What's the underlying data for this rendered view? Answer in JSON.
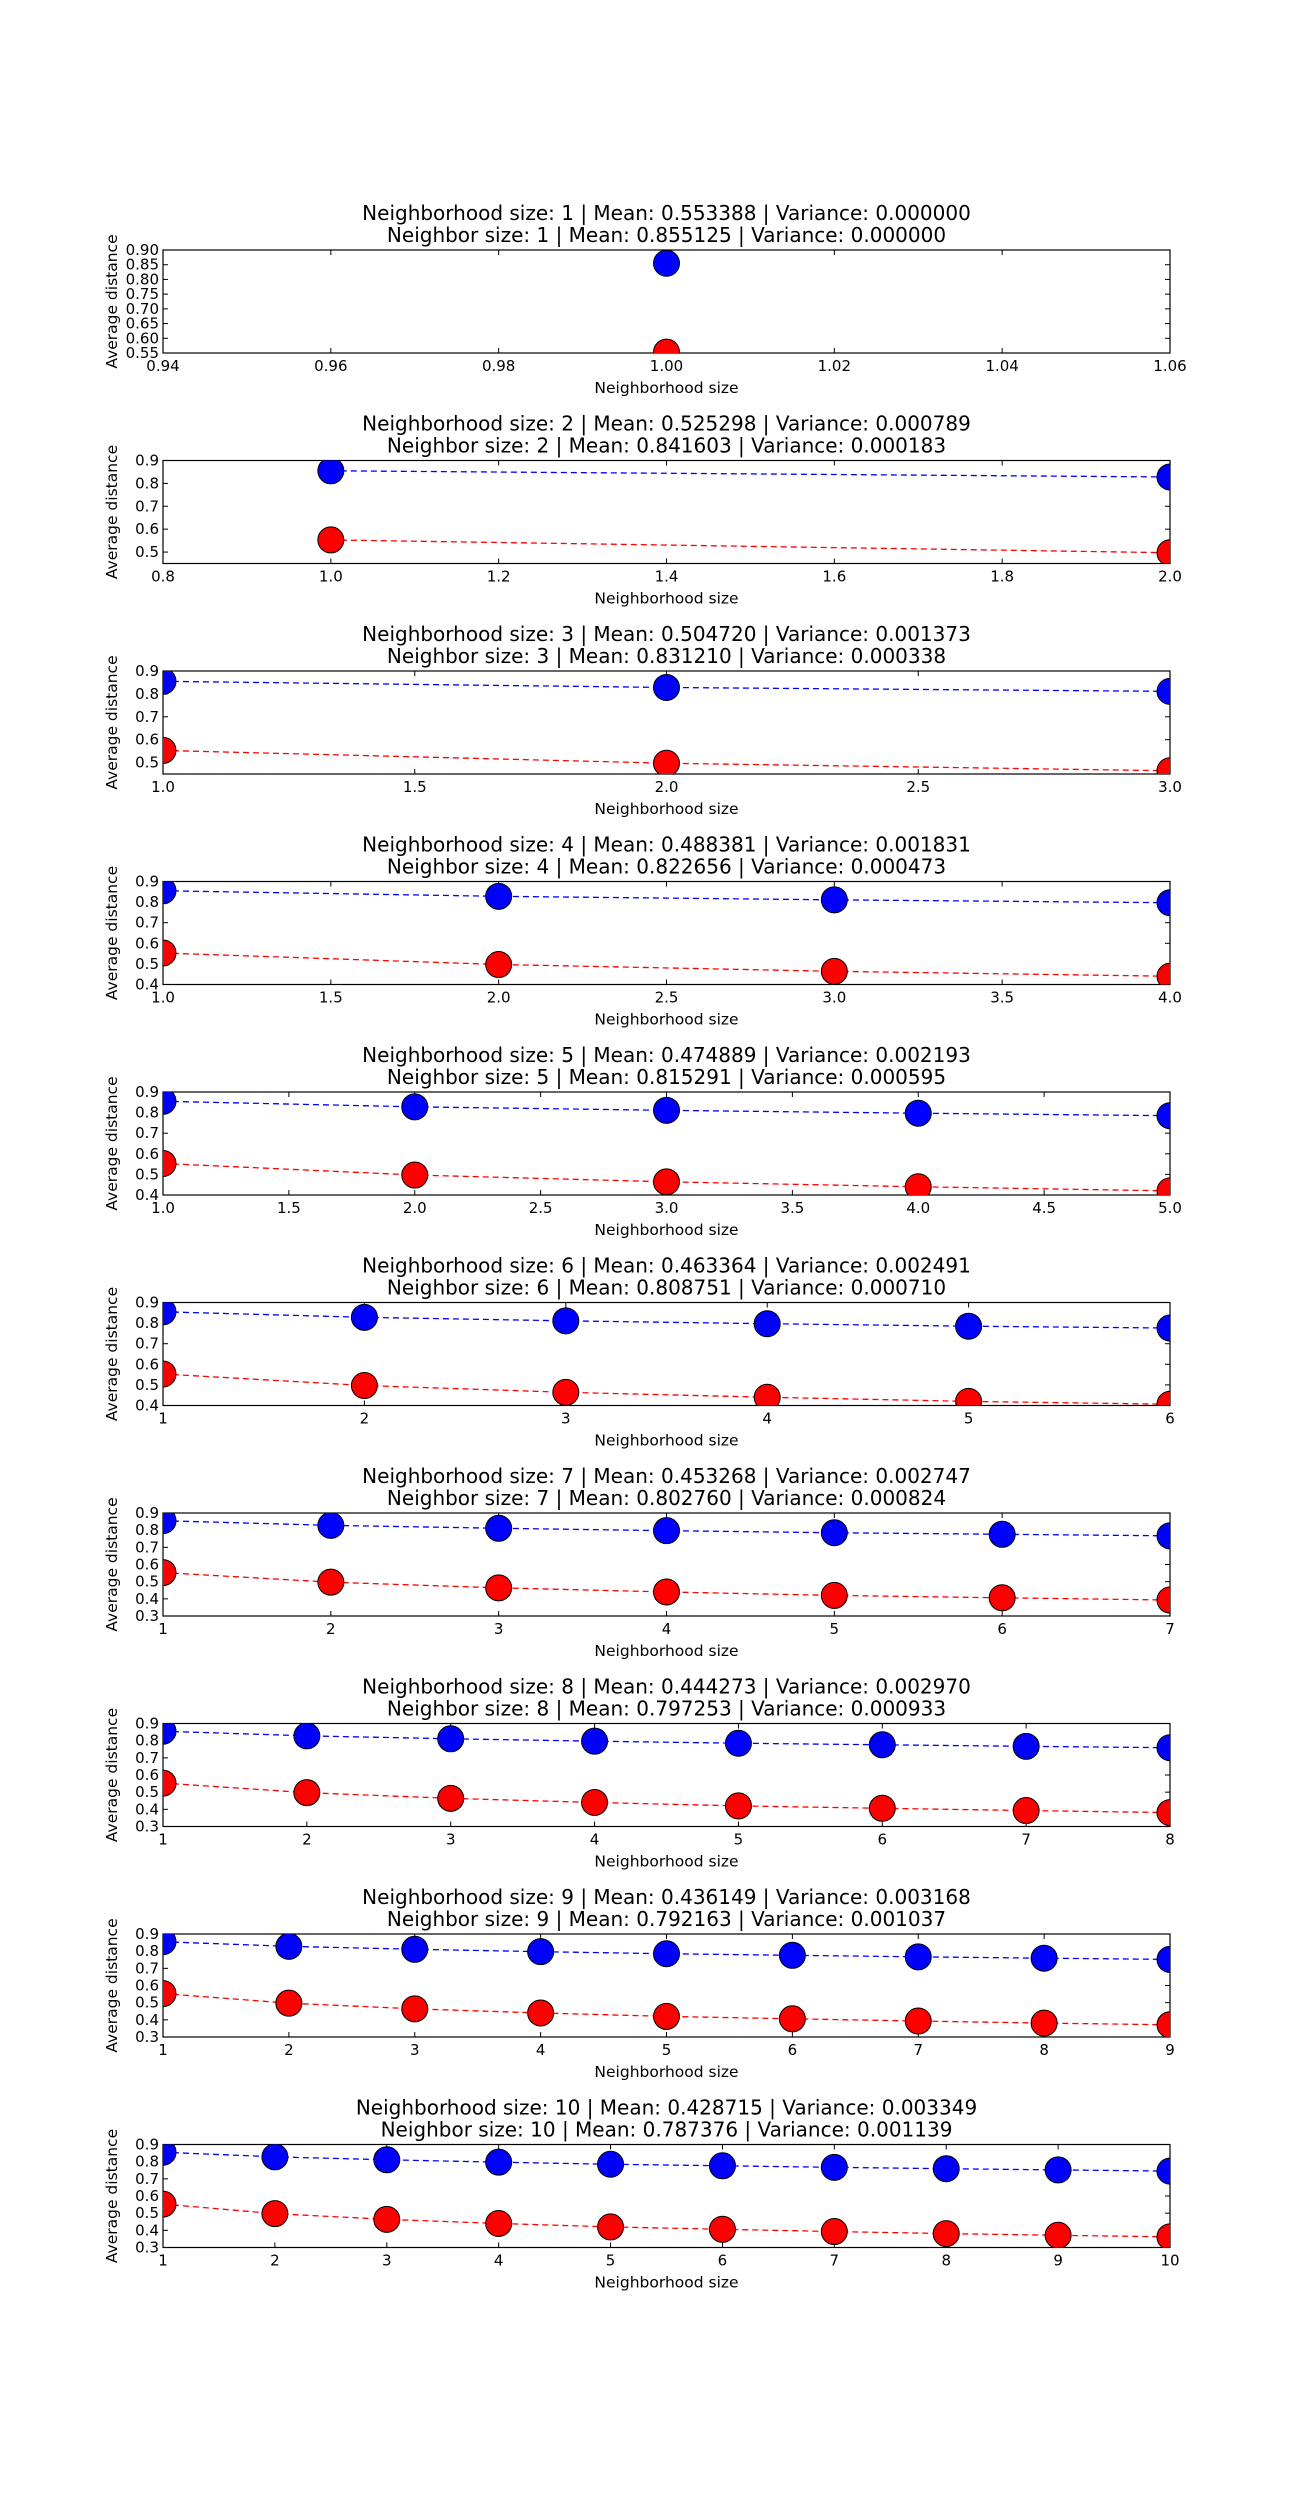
{
  "figure": {
    "colors": {
      "blue": "#0000ff",
      "red": "#ff0000"
    },
    "xlabel": "Neighborhood size",
    "ylabel": "Average distance"
  },
  "chart_data": [
    {
      "type": "line",
      "title": "Neighborhood size: 1 | Mean: 0.553388 | Variance: 0.000000",
      "subtitle": "Neighbor size: 1 | Mean: 0.855125 | Variance: 0.000000",
      "xlabel": "Neighborhood size",
      "ylabel": "Average distance",
      "xlim": [
        0.94,
        1.06
      ],
      "ylim": [
        0.55,
        0.9
      ],
      "xticks": [
        "0.94",
        "0.96",
        "0.98",
        "1.00",
        "1.02",
        "1.04",
        "1.06"
      ],
      "yticks": [
        "0.55",
        "0.60",
        "0.65",
        "0.70",
        "0.75",
        "0.80",
        "0.85",
        "0.90"
      ],
      "x": [
        1
      ],
      "series": [
        {
          "color": "blue",
          "values": [
            0.855
          ]
        },
        {
          "color": "red",
          "values": [
            0.553
          ]
        }
      ]
    },
    {
      "type": "line",
      "title": "Neighborhood size: 2 | Mean: 0.525298 | Variance: 0.000789",
      "subtitle": "Neighbor size: 2 | Mean: 0.841603 | Variance: 0.000183",
      "xlabel": "Neighborhood size",
      "ylabel": "Average distance",
      "xlim": [
        0.8,
        2.0
      ],
      "ylim": [
        0.45,
        0.9
      ],
      "xticks": [
        "0.8",
        "1.0",
        "1.2",
        "1.4",
        "1.6",
        "1.8",
        "2.0"
      ],
      "yticks": [
        "0.5",
        "0.6",
        "0.7",
        "0.8",
        "0.9"
      ],
      "x": [
        1,
        2
      ],
      "series": [
        {
          "color": "blue",
          "values": [
            0.855,
            0.828
          ]
        },
        {
          "color": "red",
          "values": [
            0.553,
            0.497
          ]
        }
      ]
    },
    {
      "type": "line",
      "title": "Neighborhood size: 3 | Mean: 0.504720 | Variance: 0.001373",
      "subtitle": "Neighbor size: 3 | Mean: 0.831210 | Variance: 0.000338",
      "xlabel": "Neighborhood size",
      "ylabel": "Average distance",
      "xlim": [
        1.0,
        3.0
      ],
      "ylim": [
        0.45,
        0.9
      ],
      "xticks": [
        "1.0",
        "1.5",
        "2.0",
        "2.5",
        "3.0"
      ],
      "yticks": [
        "0.5",
        "0.6",
        "0.7",
        "0.8",
        "0.9"
      ],
      "x": [
        1,
        2,
        3
      ],
      "series": [
        {
          "color": "blue",
          "values": [
            0.855,
            0.828,
            0.811
          ]
        },
        {
          "color": "red",
          "values": [
            0.553,
            0.497,
            0.464
          ]
        }
      ]
    },
    {
      "type": "line",
      "title": "Neighborhood size: 4 | Mean: 0.488381 | Variance: 0.001831",
      "subtitle": "Neighbor size: 4 | Mean: 0.822656 | Variance: 0.000473",
      "xlabel": "Neighborhood size",
      "ylabel": "Average distance",
      "xlim": [
        1.0,
        4.0
      ],
      "ylim": [
        0.4,
        0.9
      ],
      "xticks": [
        "1.0",
        "1.5",
        "2.0",
        "2.5",
        "3.0",
        "3.5",
        "4.0"
      ],
      "yticks": [
        "0.4",
        "0.5",
        "0.6",
        "0.7",
        "0.8",
        "0.9"
      ],
      "x": [
        1,
        2,
        3,
        4
      ],
      "series": [
        {
          "color": "blue",
          "values": [
            0.855,
            0.828,
            0.811,
            0.797
          ]
        },
        {
          "color": "red",
          "values": [
            0.553,
            0.497,
            0.464,
            0.44
          ]
        }
      ]
    },
    {
      "type": "line",
      "title": "Neighborhood size: 5 | Mean: 0.474889 | Variance: 0.002193",
      "subtitle": "Neighbor size: 5 | Mean: 0.815291 | Variance: 0.000595",
      "xlabel": "Neighborhood size",
      "ylabel": "Average distance",
      "xlim": [
        1.0,
        5.0
      ],
      "ylim": [
        0.4,
        0.9
      ],
      "xticks": [
        "1.0",
        "1.5",
        "2.0",
        "2.5",
        "3.0",
        "3.5",
        "4.0",
        "4.5",
        "5.0"
      ],
      "yticks": [
        "0.4",
        "0.5",
        "0.6",
        "0.7",
        "0.8",
        "0.9"
      ],
      "x": [
        1,
        2,
        3,
        4,
        5
      ],
      "series": [
        {
          "color": "blue",
          "values": [
            0.855,
            0.828,
            0.811,
            0.797,
            0.785
          ]
        },
        {
          "color": "red",
          "values": [
            0.553,
            0.497,
            0.464,
            0.44,
            0.42
          ]
        }
      ]
    },
    {
      "type": "line",
      "title": "Neighborhood size: 6 | Mean: 0.463364 | Variance: 0.002491",
      "subtitle": "Neighbor size: 6 | Mean: 0.808751 | Variance: 0.000710",
      "xlabel": "Neighborhood size",
      "ylabel": "Average distance",
      "xlim": [
        1,
        6
      ],
      "ylim": [
        0.4,
        0.9
      ],
      "xticks": [
        "1",
        "2",
        "3",
        "4",
        "5",
        "6"
      ],
      "yticks": [
        "0.4",
        "0.5",
        "0.6",
        "0.7",
        "0.8",
        "0.9"
      ],
      "x": [
        1,
        2,
        3,
        4,
        5,
        6
      ],
      "series": [
        {
          "color": "blue",
          "values": [
            0.855,
            0.828,
            0.811,
            0.797,
            0.785,
            0.776
          ]
        },
        {
          "color": "red",
          "values": [
            0.553,
            0.497,
            0.464,
            0.44,
            0.42,
            0.406
          ]
        }
      ]
    },
    {
      "type": "line",
      "title": "Neighborhood size: 7 | Mean: 0.453268 | Variance: 0.002747",
      "subtitle": "Neighbor size: 7 | Mean: 0.802760 | Variance: 0.000824",
      "xlabel": "Neighborhood size",
      "ylabel": "Average distance",
      "xlim": [
        1,
        7
      ],
      "ylim": [
        0.3,
        0.9
      ],
      "xticks": [
        "1",
        "2",
        "3",
        "4",
        "5",
        "6",
        "7"
      ],
      "yticks": [
        "0.3",
        "0.4",
        "0.5",
        "0.6",
        "0.7",
        "0.8",
        "0.9"
      ],
      "x": [
        1,
        2,
        3,
        4,
        5,
        6,
        7
      ],
      "series": [
        {
          "color": "blue",
          "values": [
            0.855,
            0.828,
            0.811,
            0.797,
            0.785,
            0.776,
            0.767
          ]
        },
        {
          "color": "red",
          "values": [
            0.553,
            0.497,
            0.464,
            0.44,
            0.42,
            0.406,
            0.393
          ]
        }
      ]
    },
    {
      "type": "line",
      "title": "Neighborhood size: 8 | Mean: 0.444273 | Variance: 0.002970",
      "subtitle": "Neighbor size: 8 | Mean: 0.797253 | Variance: 0.000933",
      "xlabel": "Neighborhood size",
      "ylabel": "Average distance",
      "xlim": [
        1,
        8
      ],
      "ylim": [
        0.3,
        0.9
      ],
      "xticks": [
        "1",
        "2",
        "3",
        "4",
        "5",
        "6",
        "7",
        "8"
      ],
      "yticks": [
        "0.3",
        "0.4",
        "0.5",
        "0.6",
        "0.7",
        "0.8",
        "0.9"
      ],
      "x": [
        1,
        2,
        3,
        4,
        5,
        6,
        7,
        8
      ],
      "series": [
        {
          "color": "blue",
          "values": [
            0.855,
            0.828,
            0.811,
            0.797,
            0.785,
            0.776,
            0.767,
            0.759
          ]
        },
        {
          "color": "red",
          "values": [
            0.553,
            0.497,
            0.464,
            0.44,
            0.42,
            0.406,
            0.393,
            0.381
          ]
        }
      ]
    },
    {
      "type": "line",
      "title": "Neighborhood size: 9 | Mean: 0.436149 | Variance: 0.003168",
      "subtitle": "Neighbor size: 9 | Mean: 0.792163 | Variance: 0.001037",
      "xlabel": "Neighborhood size",
      "ylabel": "Average distance",
      "xlim": [
        1,
        9
      ],
      "ylim": [
        0.3,
        0.9
      ],
      "xticks": [
        "1",
        "2",
        "3",
        "4",
        "5",
        "6",
        "7",
        "8",
        "9"
      ],
      "yticks": [
        "0.3",
        "0.4",
        "0.5",
        "0.6",
        "0.7",
        "0.8",
        "0.9"
      ],
      "x": [
        1,
        2,
        3,
        4,
        5,
        6,
        7,
        8,
        9
      ],
      "series": [
        {
          "color": "blue",
          "values": [
            0.855,
            0.828,
            0.811,
            0.797,
            0.785,
            0.776,
            0.767,
            0.759,
            0.752
          ]
        },
        {
          "color": "red",
          "values": [
            0.553,
            0.497,
            0.464,
            0.44,
            0.42,
            0.406,
            0.393,
            0.381,
            0.371
          ]
        }
      ]
    },
    {
      "type": "line",
      "title": "Neighborhood size: 10 | Mean: 0.428715 | Variance: 0.003349",
      "subtitle": "Neighbor size: 10 | Mean: 0.787376 | Variance: 0.001139",
      "xlabel": "Neighborhood size",
      "ylabel": "Average distance",
      "xlim": [
        1,
        10
      ],
      "ylim": [
        0.3,
        0.9
      ],
      "xticks": [
        "1",
        "2",
        "3",
        "4",
        "5",
        "6",
        "7",
        "8",
        "9",
        "10"
      ],
      "yticks": [
        "0.3",
        "0.4",
        "0.5",
        "0.6",
        "0.7",
        "0.8",
        "0.9"
      ],
      "x": [
        1,
        2,
        3,
        4,
        5,
        6,
        7,
        8,
        9,
        10
      ],
      "series": [
        {
          "color": "blue",
          "values": [
            0.855,
            0.828,
            0.811,
            0.797,
            0.785,
            0.776,
            0.767,
            0.759,
            0.752,
            0.745
          ]
        },
        {
          "color": "red",
          "values": [
            0.553,
            0.497,
            0.464,
            0.44,
            0.42,
            0.406,
            0.393,
            0.381,
            0.371,
            0.362
          ]
        }
      ]
    }
  ]
}
